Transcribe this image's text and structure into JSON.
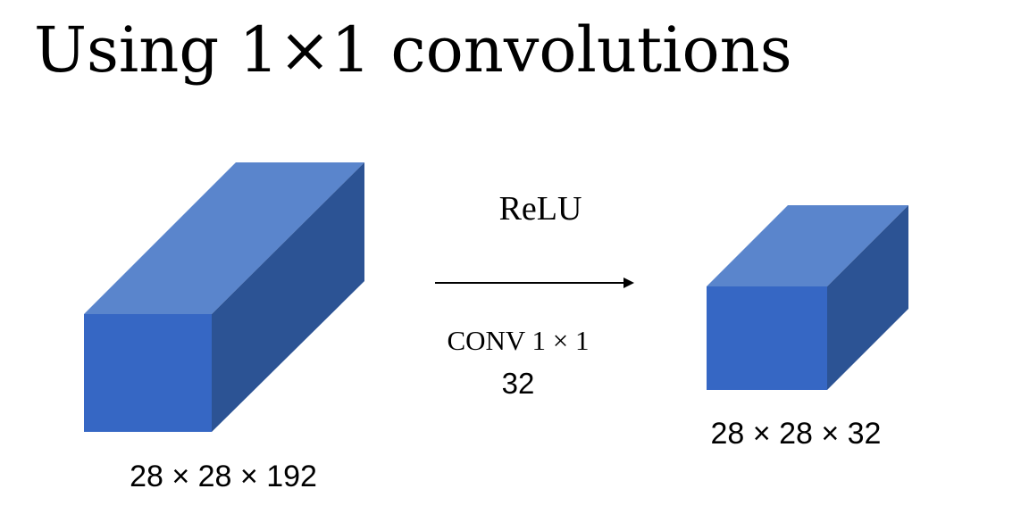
{
  "slide": {
    "title": "Using 1×1 convolutions"
  },
  "diagram": {
    "input_volume": {
      "dims_label": "28 × 28 × 192"
    },
    "operation": {
      "activation_label": "ReLU",
      "conv_label": "CONV 1 × 1",
      "filters_label": "32"
    },
    "output_volume": {
      "dims_label": "28 × 28 × 32"
    }
  },
  "colors": {
    "cube_front": "#3667c4",
    "cube_top": "#5a85cc",
    "cube_side": "#2c5394",
    "arrow": "#000000",
    "background": "#ffffff"
  }
}
